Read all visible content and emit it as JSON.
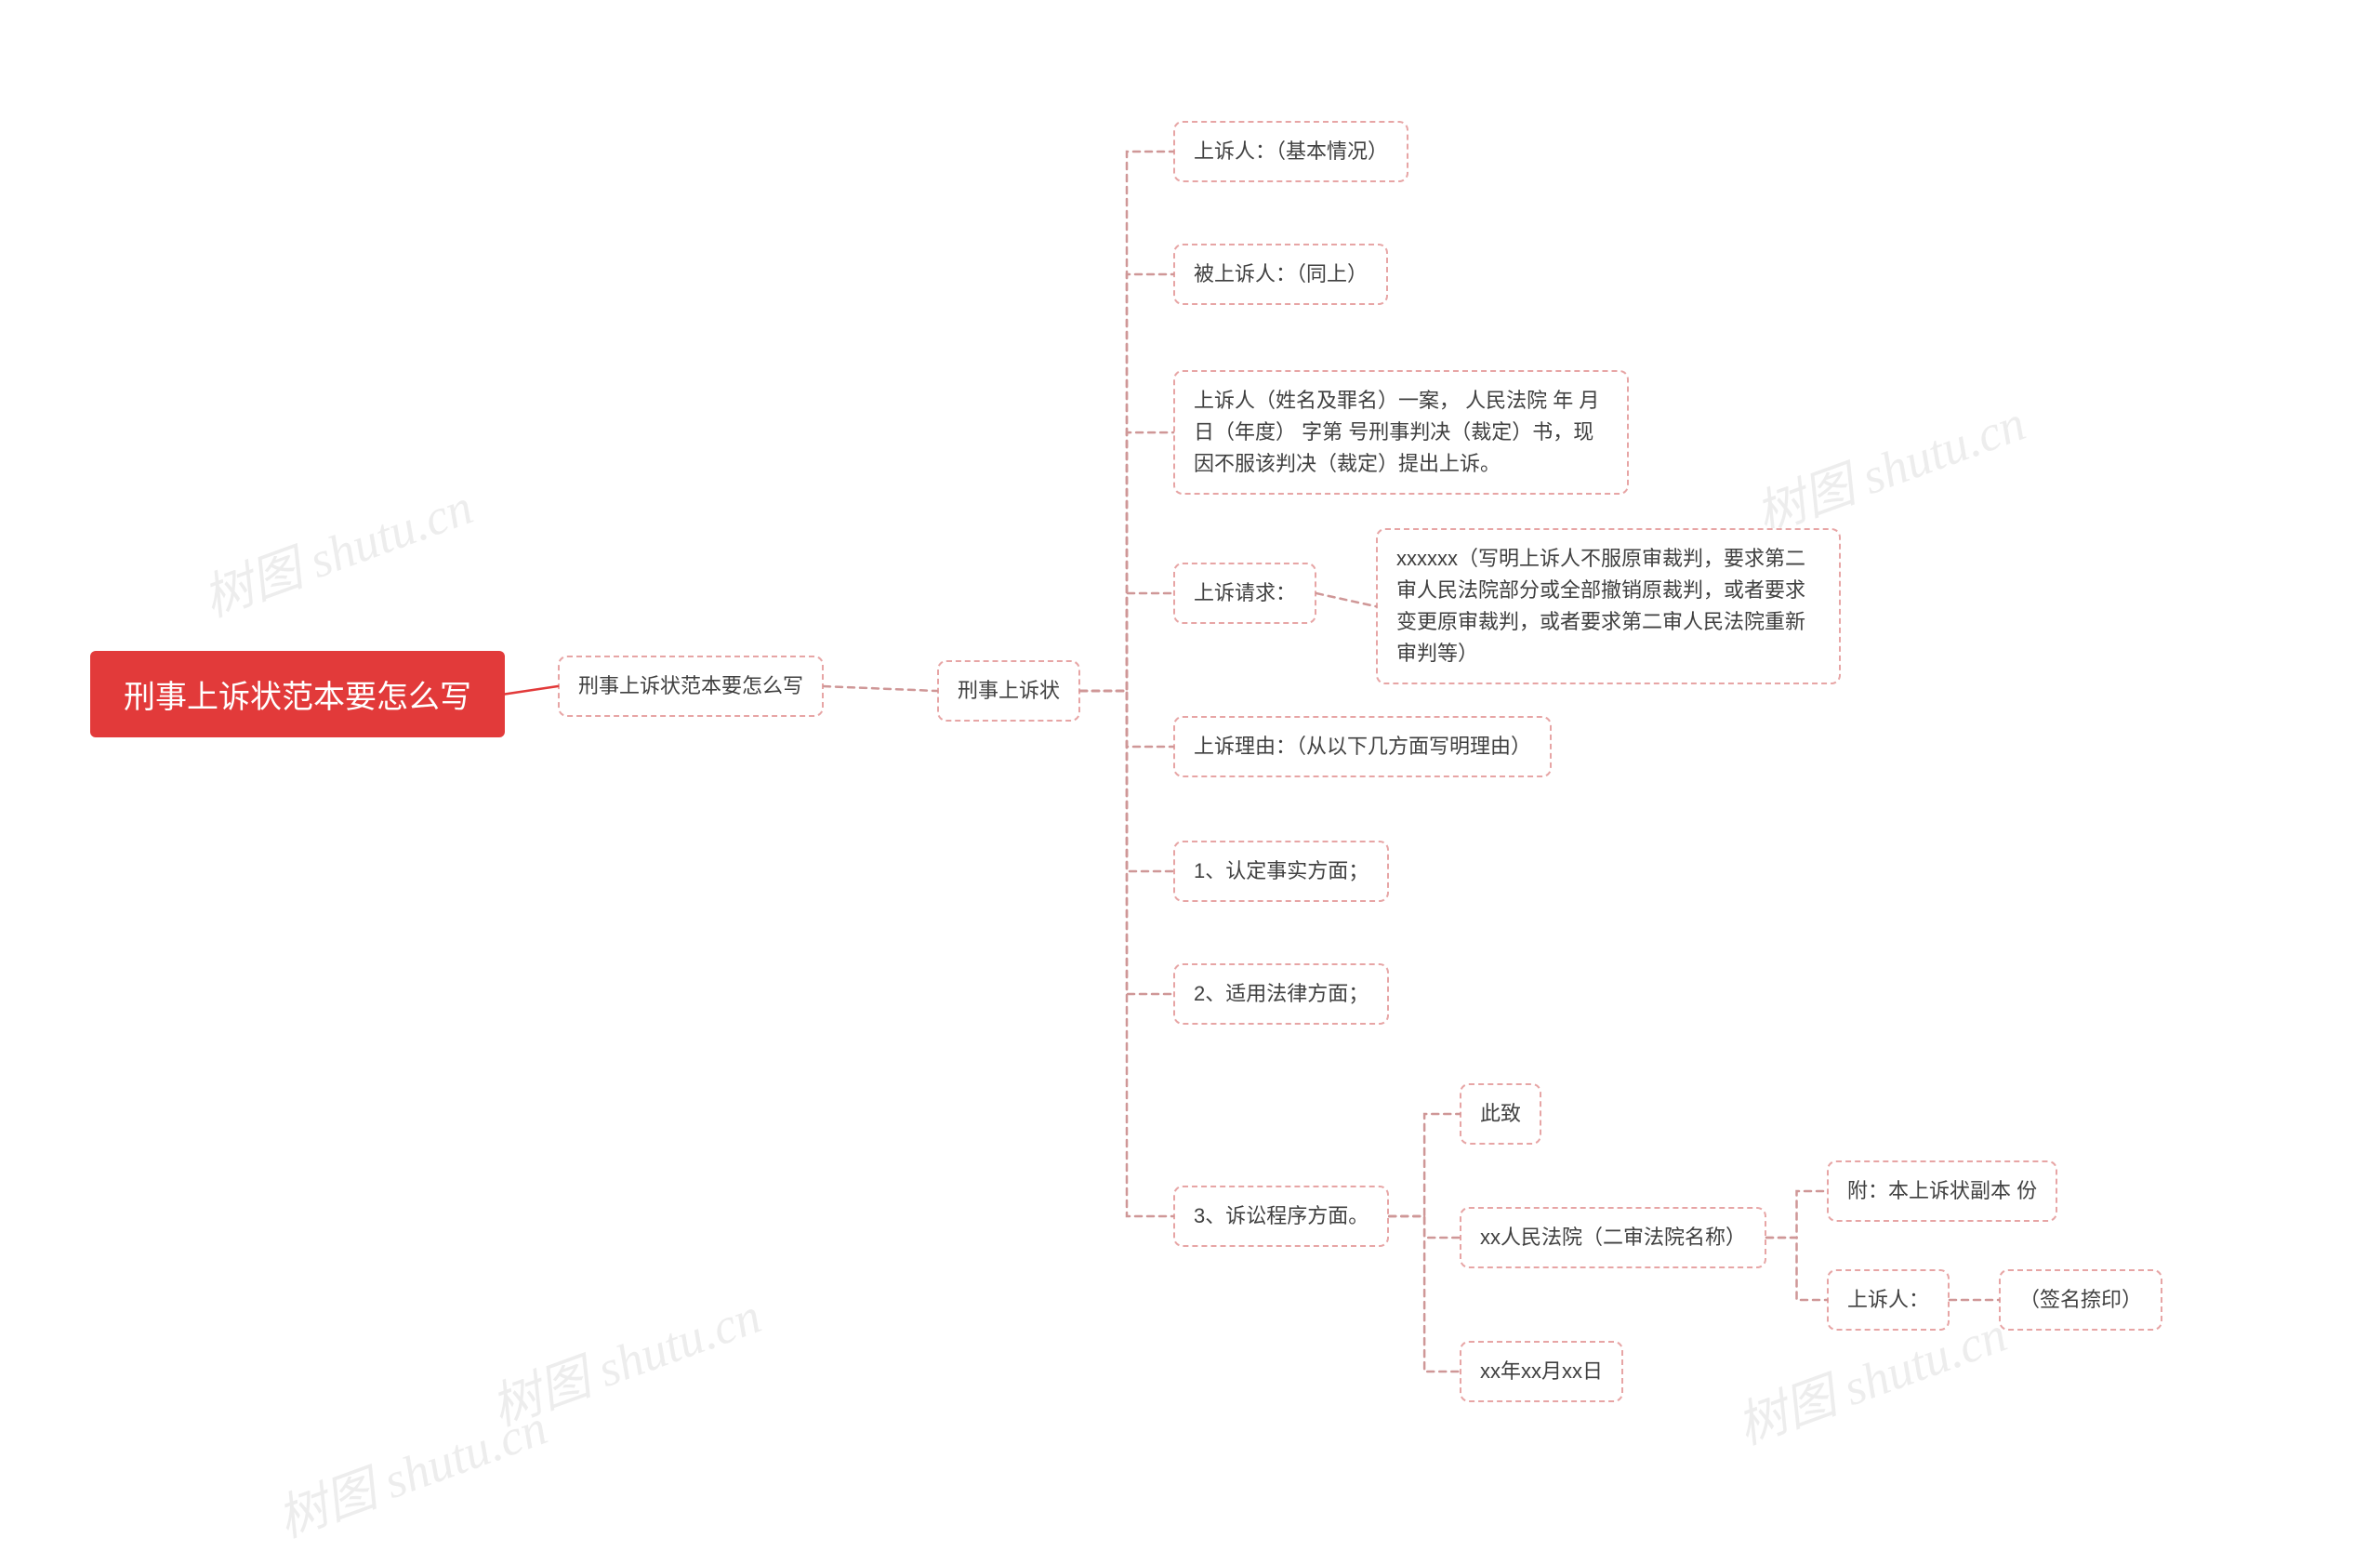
{
  "colors": {
    "root_bg": "#e23a3a",
    "root_text": "#ffffff",
    "node_border": "#e7a5a5",
    "node_text": "#404040",
    "connector": "#e23a3a",
    "connector_child": "#cf9797",
    "watermark": "#c8c8c8",
    "background": "#ffffff"
  },
  "watermark_text": "树图 shutu.cn",
  "root": {
    "label": "刑事上诉状范本要怎么写"
  },
  "level1": {
    "label": "刑事上诉状范本要怎么写"
  },
  "level2": {
    "label": "刑事上诉状"
  },
  "children": [
    {
      "label": "上诉人：（基本情况）"
    },
    {
      "label": "被上诉人：（同上）"
    },
    {
      "label": "上诉人（姓名及罪名）一案， 人民法院 年 月 日（年度） 字第 号刑事判决（裁定）书，现因不服该判决（裁定）提出上诉。"
    },
    {
      "label": "上诉请求：",
      "sub": "xxxxxx（写明上诉人不服原审裁判，要求第二审人民法院部分或全部撤销原裁判，或者要求变更原审裁判，或者要求第二审人民法院重新审判等）"
    },
    {
      "label": "上诉理由：（从以下几方面写明理由）"
    },
    {
      "label": "1、认定事实方面；"
    },
    {
      "label": "2、适用法律方面；"
    },
    {
      "label": "3、诉讼程序方面。"
    }
  ],
  "procedure_children": [
    {
      "label": "此致"
    },
    {
      "label": "xx人民法院（二审法院名称）"
    },
    {
      "label": "xx年xx月xx日"
    }
  ],
  "court_children": [
    {
      "label": "附：本上诉状副本 份"
    },
    {
      "label": "上诉人：",
      "sub": "（签名捺印）"
    }
  ],
  "style": {
    "node_font_size": 22,
    "root_font_size": 34,
    "border_width": 2,
    "border_style": "dashed",
    "border_radius": 10,
    "connector_width": 2.5
  }
}
